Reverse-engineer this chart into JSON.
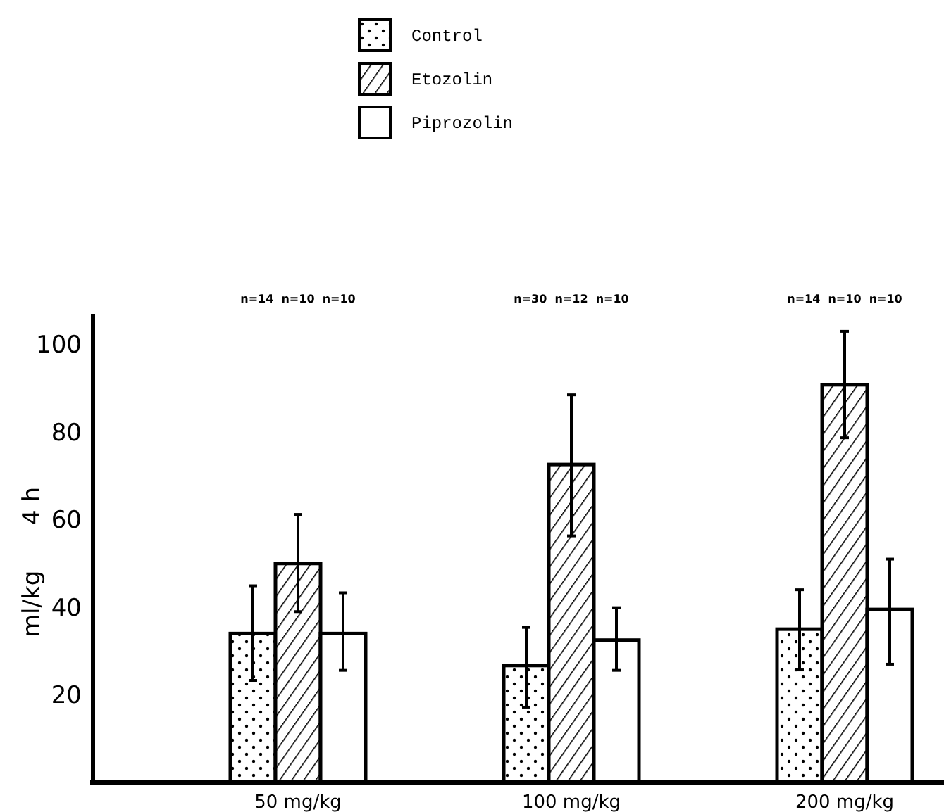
{
  "chart_data": {
    "type": "bar",
    "ylabel": "ml/kg      4 h",
    "categories": [
      "50 mg/kg",
      "100 mg/kg",
      "200 mg/kg"
    ],
    "series": [
      {
        "name": "Control",
        "color": "#ffffff",
        "values": [
          34,
          26.7,
          35
        ],
        "errors": [
          [
            23.3,
            44.9
          ],
          [
            17.2,
            35.4
          ],
          [
            25.7,
            44
          ]
        ]
      },
      {
        "name": "Etozolin",
        "color": "#ffffff",
        "values": [
          50,
          72.6,
          90.8
        ],
        "errors": [
          [
            39,
            61.2
          ],
          [
            56.3,
            88.5
          ],
          [
            78.7,
            103
          ]
        ]
      },
      {
        "name": "Piprozolin",
        "color": "#ffffff",
        "values": [
          34,
          32.5,
          39.5
        ],
        "errors": [
          [
            25.6,
            43.3
          ],
          [
            25.6,
            39.9
          ],
          [
            27,
            51
          ]
        ]
      }
    ],
    "ylim": [
      0,
      107
    ],
    "yticks": [
      20,
      40,
      60,
      80,
      100
    ],
    "grid": false,
    "legend": "top",
    "annotations": [
      "n=14  n=10  n=10",
      "n=30  n=12  n=10",
      "n=14  n=10  n=10"
    ]
  }
}
